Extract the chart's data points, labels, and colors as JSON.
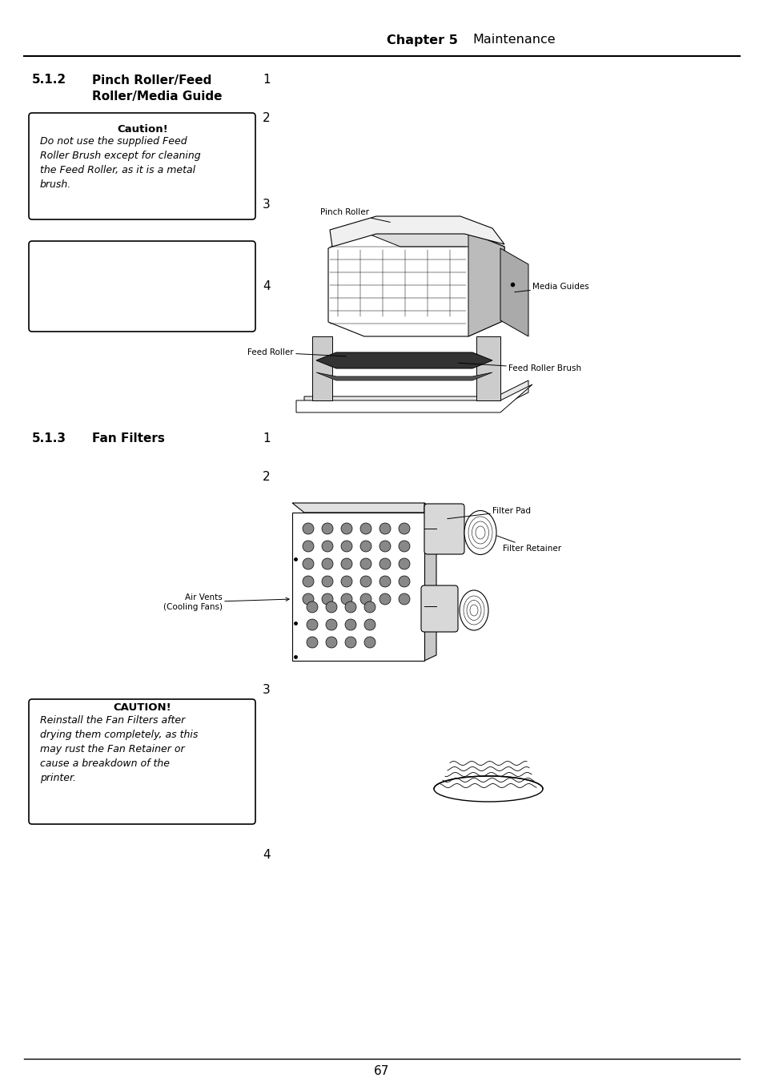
{
  "page_title_bold": "Chapter 5",
  "page_title_regular": "Maintenance",
  "section_512_number": "5.1.2",
  "section_512_title_line1": "Pinch Roller/Feed",
  "section_512_title_line2": "Roller/Media Guide",
  "section_513_number": "5.1.3",
  "section_513_title": "Fan Filters",
  "caution1_title": "Caution!",
  "caution1_body": "Do not use the supplied Feed\nRoller Brush except for cleaning\nthe Feed Roller, as it is a metal\nbrush.",
  "caution2_title": "CAUTION!",
  "caution2_body": "Reinstall the Fan Filters after\ndrying them completely, as this\nmay rust the Fan Retainer or\ncause a breakdown of the\nprinter.",
  "page_number": "67",
  "bg_color": "#ffffff",
  "text_color": "#000000"
}
